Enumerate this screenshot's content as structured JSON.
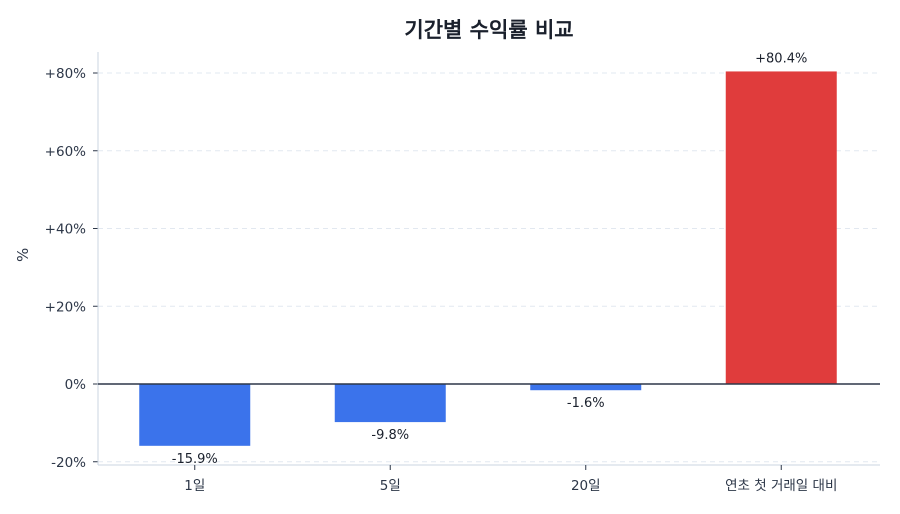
{
  "chart_data": {
    "type": "bar",
    "title": "기간별 수익률 비교",
    "xlabel": "",
    "ylabel": "%",
    "categories": [
      "1일",
      "5일",
      "20일",
      "연초 첫 거래일 대비"
    ],
    "values": [
      -15.9,
      -9.8,
      -1.6,
      80.4
    ],
    "value_labels": [
      "-15.9%",
      "-9.8%",
      "-1.6%",
      "+80.4%"
    ],
    "bar_colors": [
      "#3b73eb",
      "#3b73eb",
      "#3b73eb",
      "#e03c3c"
    ],
    "ylim": [
      -20,
      80
    ],
    "yticks": [
      -20,
      0,
      20,
      40,
      60,
      80
    ],
    "ytick_labels": [
      "-20%",
      "0%",
      "+20%",
      "+40%",
      "+60%",
      "+80%"
    ],
    "grid": "horizontal dashed",
    "legend": null
  },
  "colors": {
    "negative": "#3b73eb",
    "positive": "#e03c3c",
    "zero_line": "#2d3748",
    "grid": "#e2e8f0",
    "axis": "#cbd5e0"
  }
}
